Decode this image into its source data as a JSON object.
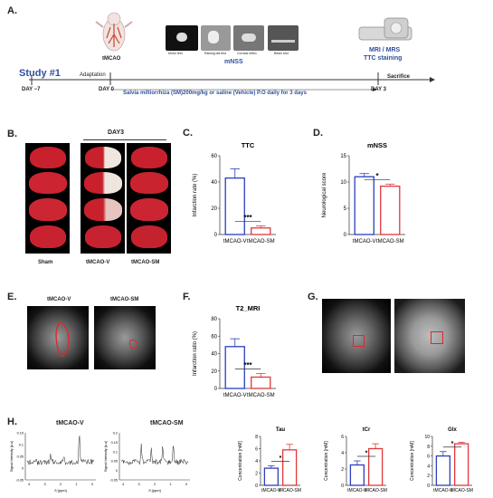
{
  "panelA": {
    "letter": "A.",
    "study_label": "Study #1",
    "tmcao_label": "tMCAO",
    "mnss_label": "mNSS",
    "mri_label": "MRI / MRS",
    "ttc_label": "TTC staining",
    "adaptation_label": "Adaptation",
    "day_minus7": "DAY −7",
    "day0": "DAY 0",
    "day3": "DAY 3",
    "sacrifice": "Sacrifice",
    "treatment": "Salvia miltiorrhiza (SM)200mg/kg or saline (Vehicle) P.O daily for 3 days",
    "tests": [
      "Motor test",
      "Raising tail test",
      "Corneal reflex",
      "Beam test"
    ]
  },
  "panelB": {
    "letter": "B.",
    "day3": "DAY3",
    "groups": [
      "Sham",
      "tMCAO-V",
      "tMCAO-SM"
    ]
  },
  "panelE": {
    "letter": "E.",
    "labels": [
      "tMCAO-V",
      "tMCAO-SM"
    ]
  },
  "panelG": {
    "letter": "G."
  },
  "panelH": {
    "letter": "H.",
    "spectra_titles": [
      "tMCAO-V",
      "tMCAO-SM"
    ]
  },
  "colors": {
    "vehicle": "#2b3fbf",
    "sm": "#e0383b",
    "text_blue": "#2e4f9e"
  },
  "chart_data": [
    {
      "id": "C",
      "letter": "C.",
      "type": "bar",
      "title": "TTC",
      "ylabel": "Infarction rate (%)",
      "categories": [
        "tMCAO-V",
        "tMCAO-SM"
      ],
      "values": [
        43,
        5
      ],
      "errors": [
        7,
        1.5
      ],
      "ylim": [
        0,
        60
      ],
      "yticks": [
        0,
        20,
        40,
        60
      ],
      "significance": "***"
    },
    {
      "id": "D",
      "letter": "D.",
      "type": "bar",
      "title": "mNSS",
      "ylabel": "Neurological score",
      "categories": [
        "tMCAO-V",
        "tMCAO-SM"
      ],
      "values": [
        11,
        9.2
      ],
      "errors": [
        0.6,
        0.4
      ],
      "ylim": [
        0,
        15
      ],
      "yticks": [
        0,
        5,
        10,
        15
      ],
      "significance": "*"
    },
    {
      "id": "F",
      "letter": "F.",
      "type": "bar",
      "title": "T2_MRI",
      "ylabel": "Infarction ratio (%)",
      "categories": [
        "tMCAO-V",
        "tMCAO-SM"
      ],
      "values": [
        48,
        13
      ],
      "errors": [
        9,
        4
      ],
      "ylim": [
        0,
        80
      ],
      "yticks": [
        0,
        20,
        40,
        60,
        80
      ],
      "significance": "***"
    },
    {
      "id": "Tau",
      "type": "bar",
      "title": "Tau",
      "ylabel": "Concentration [mM]",
      "categories": [
        "tMCAO-V",
        "tMCAO-SM"
      ],
      "values": [
        2.8,
        5.8
      ],
      "errors": [
        0.4,
        0.9
      ],
      "ylim": [
        0,
        8
      ],
      "yticks": [
        0,
        2,
        4,
        6,
        8
      ],
      "significance": "*"
    },
    {
      "id": "tCr",
      "type": "bar",
      "title": "tCr",
      "ylabel": "Concentration [mM]",
      "categories": [
        "tMCAO-V",
        "tMCAO-SM"
      ],
      "values": [
        2.5,
        4.5
      ],
      "errors": [
        0.5,
        0.6
      ],
      "ylim": [
        0,
        6
      ],
      "yticks": [
        0,
        2,
        4,
        6
      ],
      "significance": "*"
    },
    {
      "id": "Glx",
      "type": "bar",
      "title": "Glx",
      "ylabel": "Concentration [mM]",
      "categories": [
        "tMCAO-V",
        "tMCAO-SM"
      ],
      "values": [
        6.0,
        8.5
      ],
      "errors": [
        0.9,
        0.3
      ],
      "ylim": [
        0,
        10
      ],
      "yticks": [
        0,
        2,
        4,
        6,
        8,
        10
      ],
      "significance": "*"
    },
    {
      "id": "SpecV",
      "type": "line",
      "ylabel": "Signal Intensity [a.u]",
      "xlabel": "δ [ppm]",
      "xticks": [
        "4",
        "3",
        "2",
        "1",
        "0"
      ],
      "yticks": [
        "0.15",
        "0.1",
        "0.05",
        "0",
        "-0.05"
      ]
    },
    {
      "id": "SpecSM",
      "type": "line",
      "ylabel": "Signal Intensity [a.u]",
      "xlabel": "δ [ppm]",
      "xticks": [
        "4",
        "3",
        "2",
        "1",
        "0"
      ],
      "yticks": [
        "0.2",
        "0.15",
        "0.1",
        "0.05",
        "0",
        "-0.05"
      ]
    }
  ]
}
